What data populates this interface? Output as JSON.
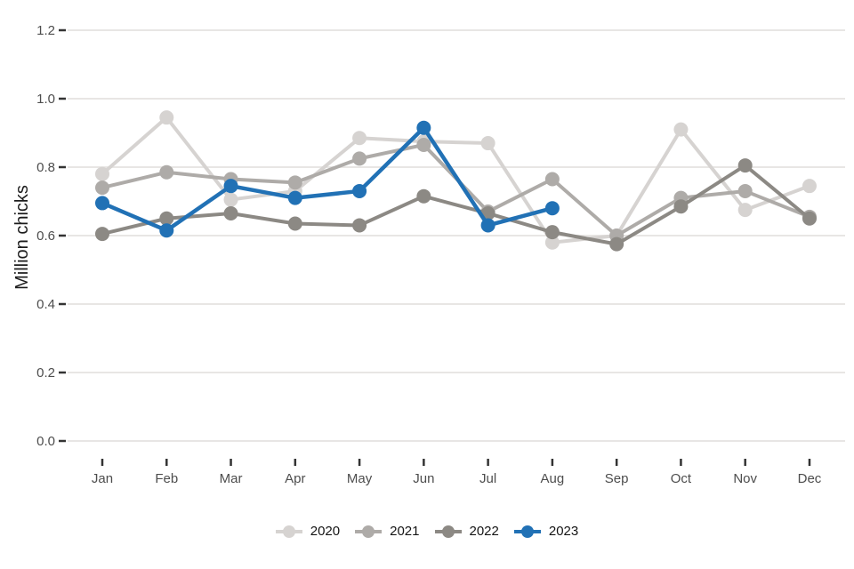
{
  "chart_data": {
    "type": "line",
    "ylabel": "Million chicks",
    "xlabel": "",
    "categories": [
      "Jan",
      "Feb",
      "Mar",
      "Apr",
      "May",
      "Jun",
      "Jul",
      "Aug",
      "Sep",
      "Oct",
      "Nov",
      "Dec"
    ],
    "y_ticks": [
      {
        "label": "0.0",
        "value": 0.0
      },
      {
        "label": "0.2",
        "value": 0.2
      },
      {
        "label": "0.4",
        "value": 0.4
      },
      {
        "label": "0.6",
        "value": 0.6
      },
      {
        "label": "0.8",
        "value": 0.8
      },
      {
        "label": "1.0",
        "value": 1.0
      },
      {
        "label": "1.2",
        "value": 1.2
      }
    ],
    "ylim": [
      0.0,
      1.2
    ],
    "grid": "horizontal-only",
    "legend_position": "bottom-center",
    "series": [
      {
        "name": "2020",
        "color": "#d6d3d1",
        "values": [
          0.78,
          0.945,
          0.705,
          0.73,
          0.885,
          0.875,
          0.87,
          0.58,
          0.6,
          0.91,
          0.675,
          0.745
        ]
      },
      {
        "name": "2021",
        "color": "#aeaba8",
        "values": [
          0.74,
          0.785,
          0.765,
          0.755,
          0.825,
          0.865,
          0.67,
          0.765,
          0.6,
          0.71,
          0.73,
          0.655
        ]
      },
      {
        "name": "2022",
        "color": "#8c8984",
        "values": [
          0.605,
          0.65,
          0.665,
          0.635,
          0.63,
          0.715,
          0.665,
          0.61,
          0.575,
          0.685,
          0.805,
          0.65
        ]
      },
      {
        "name": "2023",
        "color": "#2171b5",
        "values": [
          0.695,
          0.615,
          0.745,
          0.71,
          0.73,
          0.915,
          0.63,
          0.68,
          null,
          null,
          null,
          null
        ]
      }
    ]
  },
  "styles": {
    "background": "#ffffff",
    "gridline_color": "#e8e6e4",
    "tick_mark_color": "#333333",
    "tick_label_color": "#4d4d4d",
    "axis_title_color": "#1c1c1c",
    "legend_text_color": "#141414"
  }
}
